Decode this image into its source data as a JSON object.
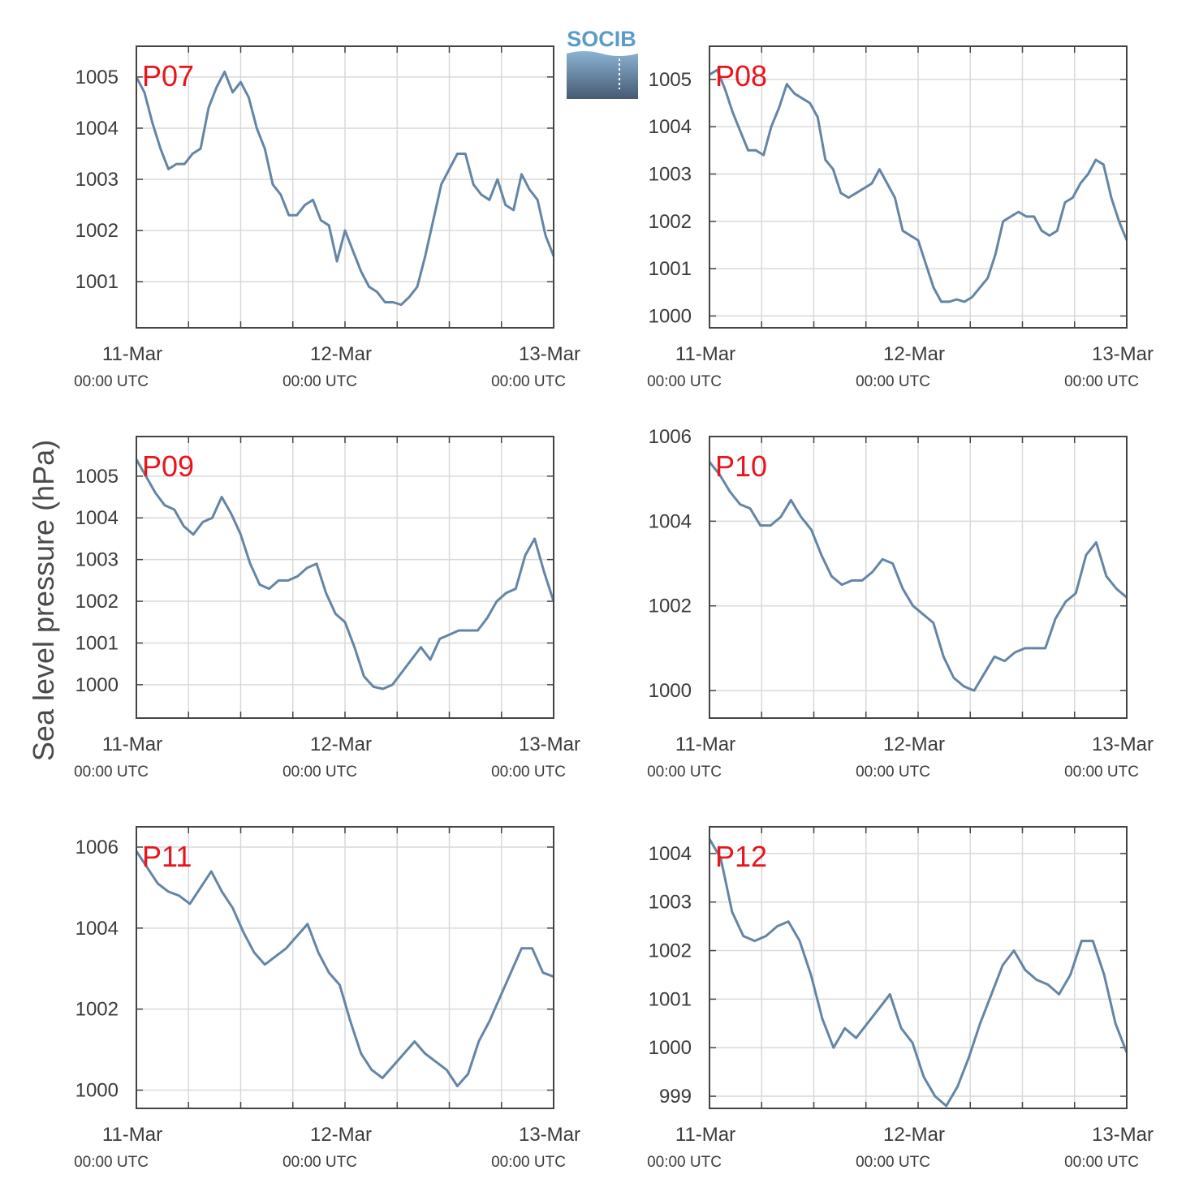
{
  "ylabel": "Sea level pressure (hPa)",
  "logo": {
    "text": "SOCIB",
    "colors": {
      "text": "#5b9bc7",
      "top": "#8bb3d3",
      "bottom": "#465a72"
    }
  },
  "colors": {
    "line": "#6485a6",
    "label": "#e8151d",
    "grid": "#d9d9d9",
    "axis": "#444444"
  },
  "x_ticks": [
    {
      "date": "11-Mar",
      "time": "00:00 UTC",
      "h": 0
    },
    {
      "date": "12-Mar",
      "time": "00:00 UTC",
      "h": 24
    },
    {
      "date": "13-Mar",
      "time": "00:00 UTC",
      "h": 48
    }
  ],
  "chart_data": [
    {
      "type": "line",
      "label": "P07",
      "xlim": [
        0,
        48
      ],
      "ylim": [
        1000.1,
        1005.6
      ],
      "yticks": [
        1001,
        1002,
        1003,
        1004,
        1005
      ],
      "y": [
        1005.0,
        1004.7,
        1004.1,
        1003.6,
        1003.2,
        1003.3,
        1003.3,
        1003.5,
        1003.6,
        1004.4,
        1004.8,
        1005.1,
        1004.7,
        1004.9,
        1004.6,
        1004.0,
        1003.6,
        1002.9,
        1002.7,
        1002.3,
        1002.3,
        1002.5,
        1002.6,
        1002.2,
        1002.1,
        1001.4,
        1002.0,
        1001.6,
        1001.2,
        1000.9,
        1000.8,
        1000.6,
        1000.6,
        1000.55,
        1000.7,
        1000.9,
        1001.5,
        1002.2,
        1002.9,
        1003.2,
        1003.5,
        1003.5,
        1002.9,
        1002.7,
        1002.6,
        1003.0,
        1002.5,
        1002.4,
        1003.1,
        1002.8,
        1002.6,
        1001.9,
        1001.5
      ]
    },
    {
      "type": "line",
      "label": "P08",
      "xlim": [
        0,
        48
      ],
      "ylim": [
        999.75,
        1005.7
      ],
      "yticks": [
        1000,
        1001,
        1002,
        1003,
        1004,
        1005
      ],
      "y": [
        1005.1,
        1005.2,
        1004.8,
        1004.3,
        1003.9,
        1003.5,
        1003.5,
        1003.4,
        1004.0,
        1004.4,
        1004.9,
        1004.7,
        1004.6,
        1004.5,
        1004.2,
        1003.3,
        1003.1,
        1002.6,
        1002.5,
        1002.6,
        1002.7,
        1002.8,
        1003.1,
        1002.8,
        1002.5,
        1001.8,
        1001.7,
        1001.6,
        1001.1,
        1000.6,
        1000.3,
        1000.3,
        1000.35,
        1000.3,
        1000.4,
        1000.6,
        1000.8,
        1001.3,
        1002.0,
        1002.1,
        1002.2,
        1002.1,
        1002.1,
        1001.8,
        1001.7,
        1001.8,
        1002.4,
        1002.5,
        1002.8,
        1003.0,
        1003.3,
        1003.2,
        1002.5,
        1002.0,
        1001.6
      ]
    },
    {
      "type": "line",
      "label": "P09",
      "xlim": [
        0,
        48
      ],
      "ylim": [
        999.2,
        1005.95
      ],
      "yticks": [
        1000,
        1001,
        1002,
        1003,
        1004,
        1005
      ],
      "y": [
        1005.4,
        1005.0,
        1004.6,
        1004.3,
        1004.2,
        1003.8,
        1003.6,
        1003.9,
        1004.0,
        1004.5,
        1004.1,
        1003.6,
        1002.9,
        1002.4,
        1002.3,
        1002.5,
        1002.5,
        1002.6,
        1002.8,
        1002.9,
        1002.2,
        1001.7,
        1001.5,
        1000.9,
        1000.2,
        999.95,
        999.9,
        1000.0,
        1000.3,
        1000.6,
        1000.9,
        1000.6,
        1001.1,
        1001.2,
        1001.3,
        1001.3,
        1001.3,
        1001.6,
        1002.0,
        1002.2,
        1002.3,
        1003.1,
        1003.5,
        1002.7,
        1002.0
      ]
    },
    {
      "type": "line",
      "label": "P10",
      "xlim": [
        0,
        48
      ],
      "ylim": [
        999.35,
        1006.0
      ],
      "yticks": [
        1000,
        1002,
        1004,
        1006
      ],
      "y": [
        1005.4,
        1005.1,
        1004.7,
        1004.4,
        1004.3,
        1003.9,
        1003.9,
        1004.1,
        1004.5,
        1004.1,
        1003.8,
        1003.2,
        1002.7,
        1002.5,
        1002.6,
        1002.6,
        1002.8,
        1003.1,
        1003.0,
        1002.4,
        1002.0,
        1001.8,
        1001.6,
        1000.8,
        1000.3,
        1000.1,
        1000.0,
        1000.4,
        1000.8,
        1000.7,
        1000.9,
        1001.0,
        1001.0,
        1001.0,
        1001.7,
        1002.1,
        1002.3,
        1003.2,
        1003.5,
        1002.7,
        1002.4,
        1002.2
      ]
    },
    {
      "type": "line",
      "label": "P12",
      "xlim": [
        0,
        48
      ],
      "ylim": [
        998.75,
        1004.55
      ],
      "yticks": [
        999,
        1000,
        1001,
        1002,
        1003,
        1004
      ],
      "y": [
        1004.3,
        1003.9,
        1002.8,
        1002.3,
        1002.2,
        1002.3,
        1002.5,
        1002.6,
        1002.2,
        1001.5,
        1000.6,
        1000.0,
        1000.4,
        1000.2,
        1000.5,
        1000.8,
        1001.1,
        1000.4,
        1000.1,
        999.4,
        999.0,
        998.8,
        999.2,
        999.8,
        1000.5,
        1001.1,
        1001.7,
        1002.0,
        1001.6,
        1001.4,
        1001.3,
        1001.1,
        1001.5,
        1002.2,
        1002.2,
        1001.5,
        1000.5,
        999.9
      ]
    },
    {
      "type": "line",
      "label": "P11",
      "xlim": [
        0,
        48
      ],
      "ylim": [
        999.55,
        1006.5
      ],
      "yticks": [
        1000,
        1002,
        1004,
        1006
      ],
      "y": [
        1005.9,
        1005.5,
        1005.1,
        1004.9,
        1004.8,
        1004.6,
        1005.0,
        1005.4,
        1004.9,
        1004.5,
        1003.9,
        1003.4,
        1003.1,
        1003.3,
        1003.5,
        1003.8,
        1004.1,
        1003.4,
        1002.9,
        1002.6,
        1001.7,
        1000.9,
        1000.5,
        1000.3,
        1000.6,
        1000.9,
        1001.2,
        1000.9,
        1000.7,
        1000.5,
        1000.1,
        1000.4,
        1001.2,
        1001.7,
        1002.3,
        1002.9,
        1003.5,
        1003.5,
        1002.9,
        1002.8
      ]
    }
  ]
}
